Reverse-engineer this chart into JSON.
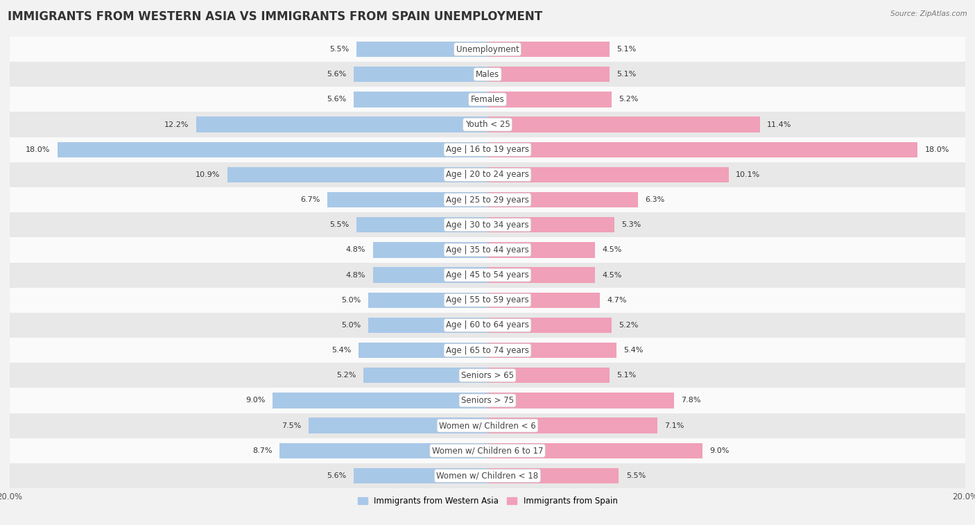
{
  "title": "IMMIGRANTS FROM WESTERN ASIA VS IMMIGRANTS FROM SPAIN UNEMPLOYMENT",
  "source": "Source: ZipAtlas.com",
  "categories": [
    "Unemployment",
    "Males",
    "Females",
    "Youth < 25",
    "Age | 16 to 19 years",
    "Age | 20 to 24 years",
    "Age | 25 to 29 years",
    "Age | 30 to 34 years",
    "Age | 35 to 44 years",
    "Age | 45 to 54 years",
    "Age | 55 to 59 years",
    "Age | 60 to 64 years",
    "Age | 65 to 74 years",
    "Seniors > 65",
    "Seniors > 75",
    "Women w/ Children < 6",
    "Women w/ Children 6 to 17",
    "Women w/ Children < 18"
  ],
  "western_asia": [
    5.5,
    5.6,
    5.6,
    12.2,
    18.0,
    10.9,
    6.7,
    5.5,
    4.8,
    4.8,
    5.0,
    5.0,
    5.4,
    5.2,
    9.0,
    7.5,
    8.7,
    5.6
  ],
  "spain": [
    5.1,
    5.1,
    5.2,
    11.4,
    18.0,
    10.1,
    6.3,
    5.3,
    4.5,
    4.5,
    4.7,
    5.2,
    5.4,
    5.1,
    7.8,
    7.1,
    9.0,
    5.5
  ],
  "blue_color": "#a8c8e8",
  "pink_color": "#f0a0b8",
  "bar_height": 0.62,
  "axis_limit": 20.0,
  "bg_color": "#f2f2f2",
  "row_bg_light": "#fafafa",
  "row_bg_dark": "#e8e8e8",
  "legend_blue": "Immigrants from Western Asia",
  "legend_pink": "Immigrants from Spain",
  "title_fontsize": 12,
  "label_fontsize": 8.5,
  "value_fontsize": 8,
  "axis_label_fontsize": 8.5
}
